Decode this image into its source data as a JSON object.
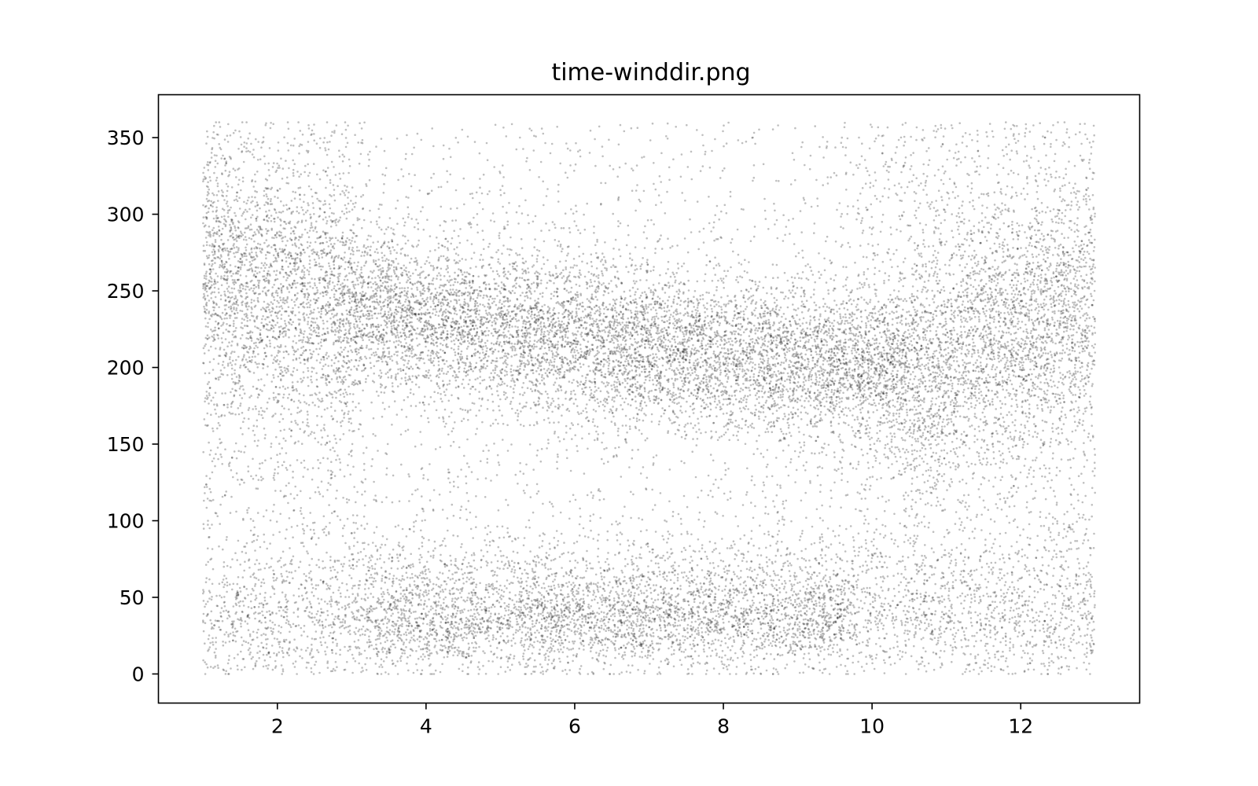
{
  "chart_data": {
    "type": "scatter",
    "title": "time-winddir.png",
    "xlabel": "",
    "ylabel": "",
    "xlim": [
      0.4,
      13.6
    ],
    "ylim": [
      -19,
      378
    ],
    "x_ticks": [
      2,
      4,
      6,
      8,
      10,
      12
    ],
    "y_ticks": [
      0,
      50,
      100,
      150,
      200,
      250,
      300,
      350
    ],
    "grid": false,
    "legend": "none",
    "marker_color": "#000000",
    "marker_alpha": 0.25,
    "x_range": [
      1,
      13
    ],
    "y_range": [
      0,
      360
    ],
    "point_count_approx": 22000,
    "density_bands": [
      {
        "x_range": [
          1,
          3.2
        ],
        "y_center": 260,
        "y_spread": 45
      },
      {
        "x_range": [
          3.2,
          7
        ],
        "y_center": 215,
        "y_spread": 30
      },
      {
        "x_range": [
          7,
          10.5
        ],
        "y_center": 205,
        "y_spread": 28
      },
      {
        "x_range": [
          10.5,
          13
        ],
        "y_center": 235,
        "y_spread": 50
      },
      {
        "x_range": [
          3.3,
          9.5
        ],
        "y_center": 40,
        "y_spread": 30
      }
    ]
  }
}
